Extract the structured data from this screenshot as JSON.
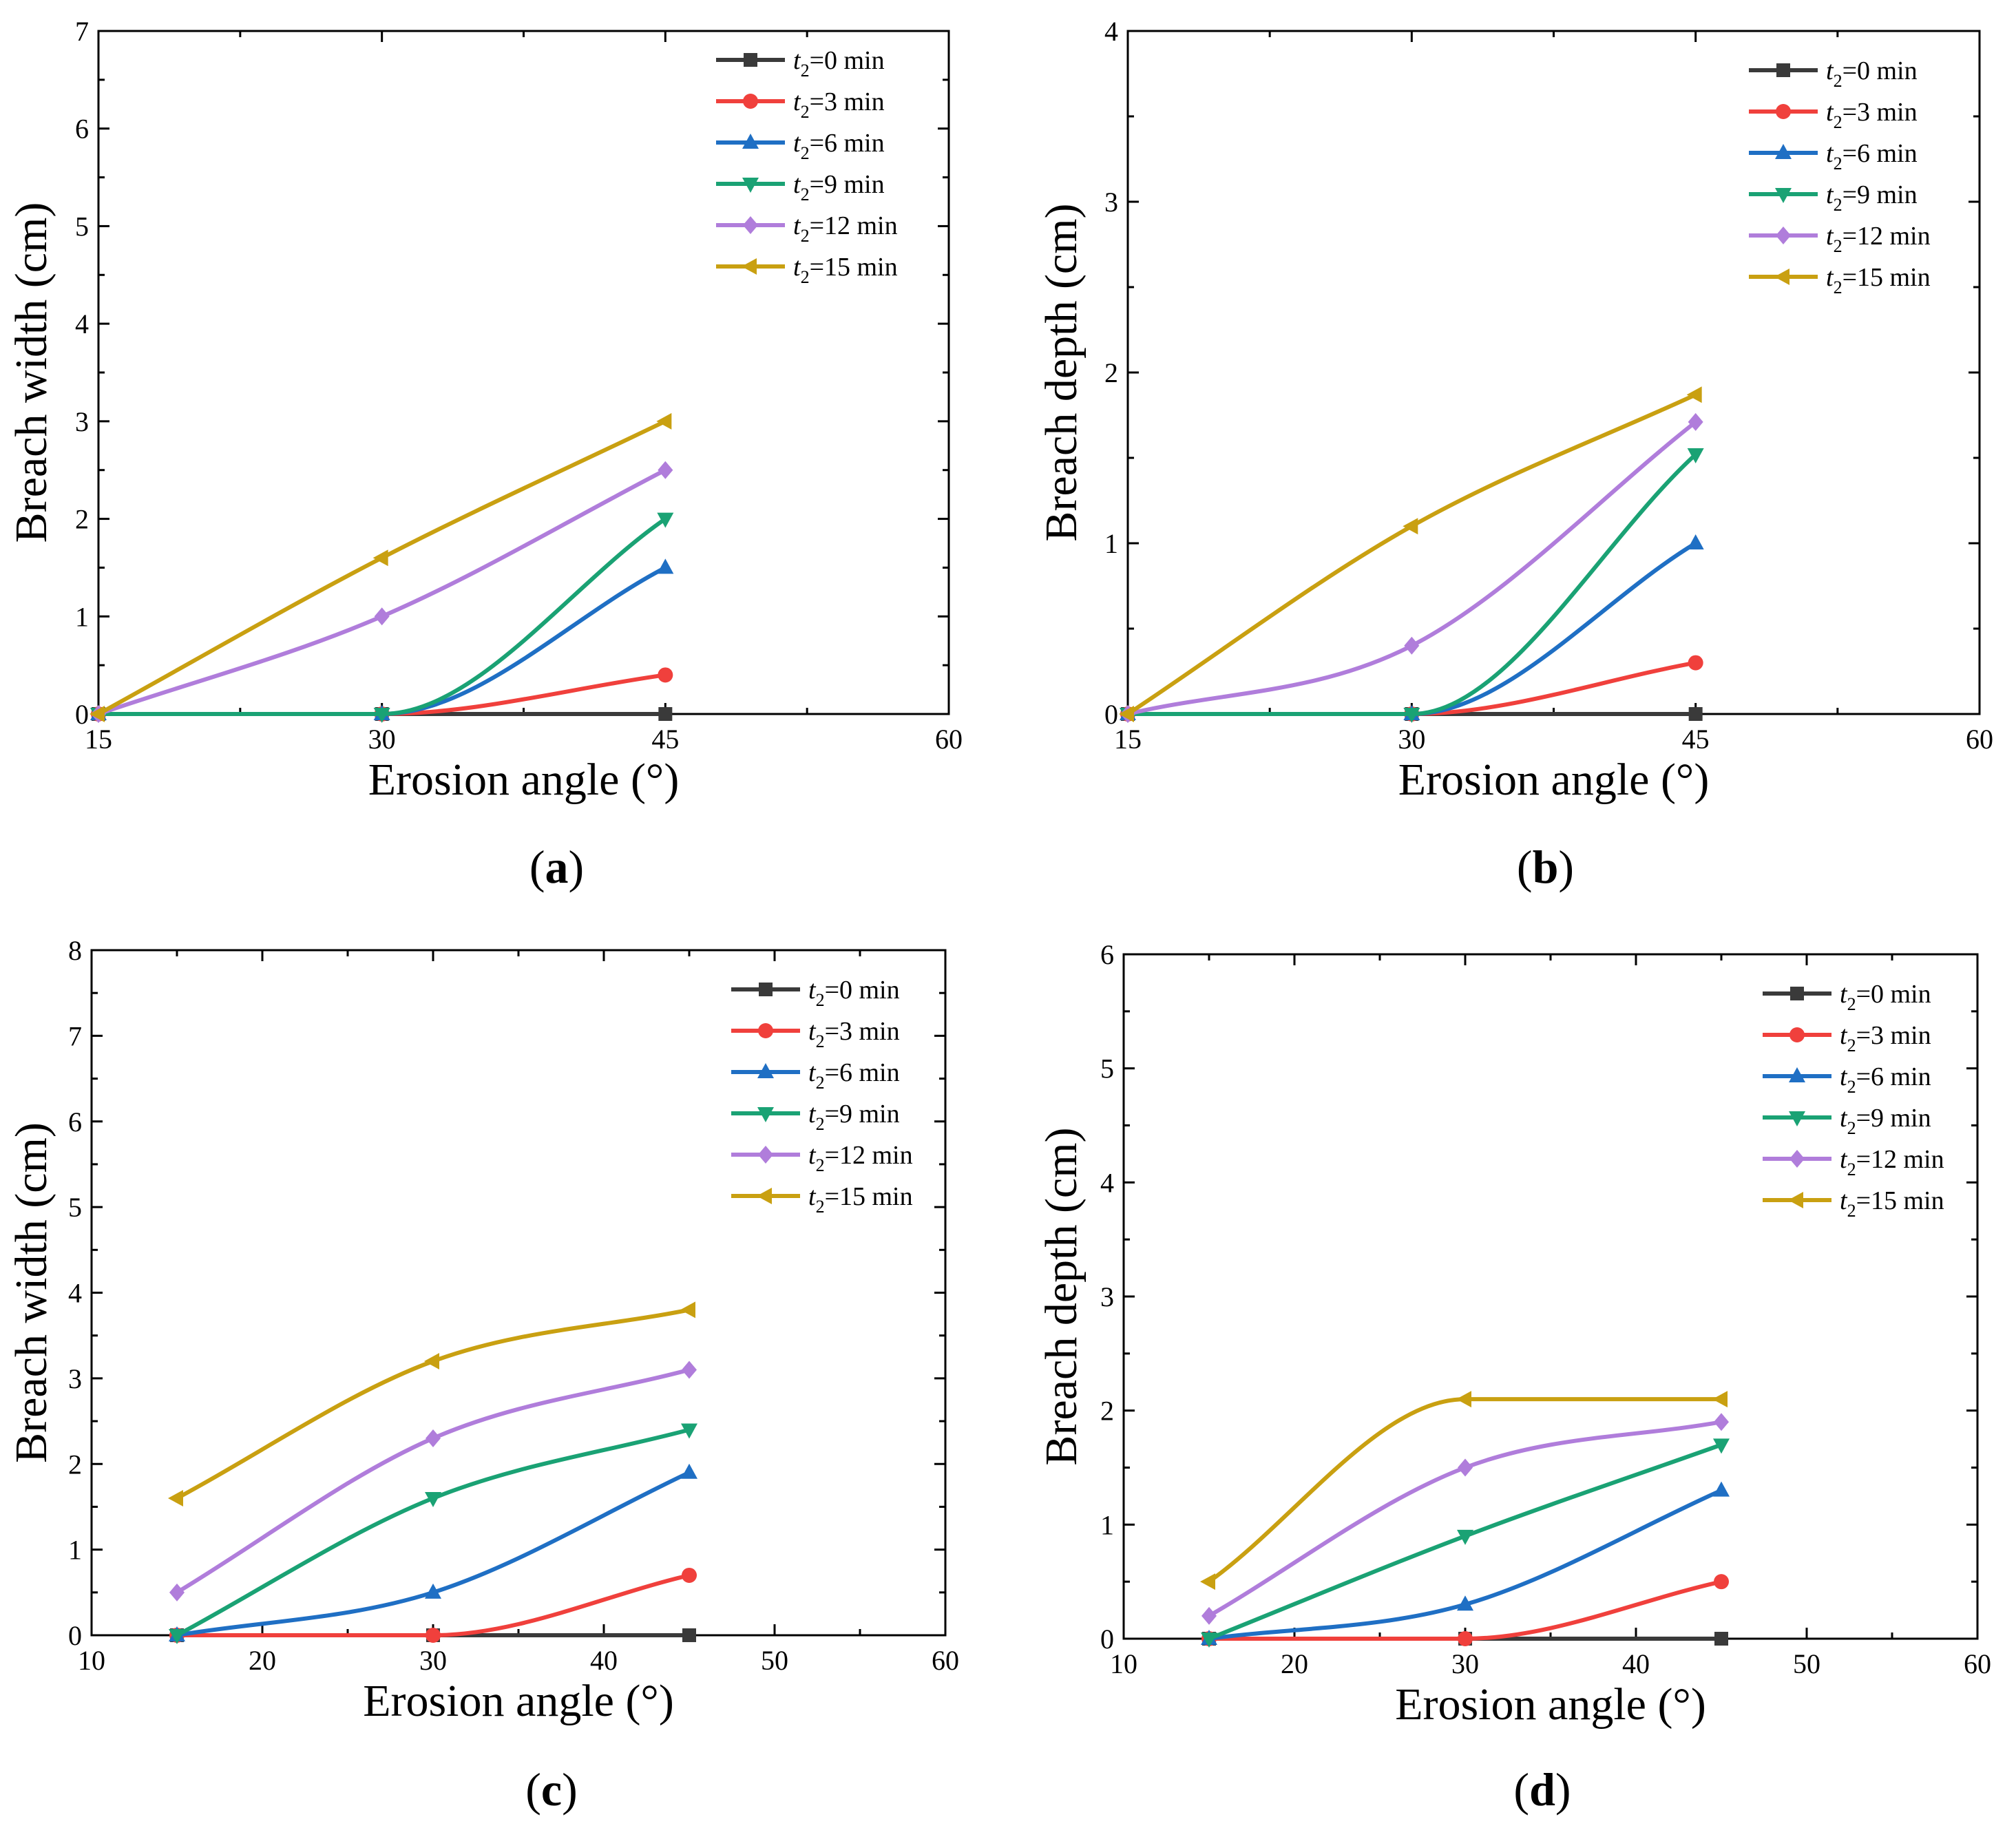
{
  "legend_common": {
    "series_labels": [
      "0 min",
      "3 min",
      "6 min",
      "9 min",
      "12 min",
      "15 min"
    ],
    "variable": "t",
    "variable_subscript": "2"
  },
  "series_styles": [
    {
      "color": "#3a3a3a",
      "marker": "square"
    },
    {
      "color": "#f0403c",
      "marker": "circle"
    },
    {
      "color": "#1f6fc4",
      "marker": "triangle-up"
    },
    {
      "color": "#1aa274",
      "marker": "triangle-down"
    },
    {
      "color": "#b07ddb",
      "marker": "diamond"
    },
    {
      "color": "#c9a011",
      "marker": "triangle-left"
    }
  ],
  "chart_data": [
    {
      "type": "line",
      "panel_label": "a",
      "xlabel": "Erosion angle (°)",
      "ylabel": "Breach width (cm)",
      "xlim": [
        15,
        60
      ],
      "ylim": [
        0,
        7
      ],
      "xticks": [
        15,
        30,
        45,
        60
      ],
      "yticks": [
        0,
        1,
        2,
        3,
        4,
        5,
        6,
        7
      ],
      "x": [
        15,
        30,
        45
      ],
      "series": [
        {
          "name": "t2=0 min",
          "values": [
            0,
            0,
            0
          ]
        },
        {
          "name": "t2=3 min",
          "values": [
            0,
            0,
            0.4
          ]
        },
        {
          "name": "t2=6 min",
          "values": [
            0,
            0,
            1.5
          ]
        },
        {
          "name": "t2=9 min",
          "values": [
            0,
            0,
            2.0
          ]
        },
        {
          "name": "t2=12 min",
          "values": [
            0,
            1.0,
            2.5
          ]
        },
        {
          "name": "t2=15 min",
          "values": [
            0,
            1.6,
            3.0
          ]
        }
      ]
    },
    {
      "type": "line",
      "panel_label": "b",
      "xlabel": "Erosion angle (°)",
      "ylabel": "Breach depth (cm)",
      "xlim": [
        15,
        60
      ],
      "ylim": [
        0,
        4
      ],
      "xticks": [
        15,
        30,
        45,
        60
      ],
      "yticks": [
        0,
        1,
        2,
        3,
        4
      ],
      "x": [
        15,
        30,
        45
      ],
      "series": [
        {
          "name": "t2=0 min",
          "values": [
            0,
            0,
            0
          ]
        },
        {
          "name": "t2=3 min",
          "values": [
            0,
            0,
            0.3
          ]
        },
        {
          "name": "t2=6 min",
          "values": [
            0,
            0,
            1.0
          ]
        },
        {
          "name": "t2=9 min",
          "values": [
            0,
            0,
            1.52
          ]
        },
        {
          "name": "t2=12 min",
          "values": [
            0,
            0.4,
            1.71
          ]
        },
        {
          "name": "t2=15 min",
          "values": [
            0,
            1.1,
            1.87
          ]
        }
      ]
    },
    {
      "type": "line",
      "panel_label": "c",
      "xlabel": "Erosion angle (°)",
      "ylabel": "Breach width (cm)",
      "xlim": [
        10,
        60
      ],
      "ylim": [
        0,
        8
      ],
      "xticks": [
        10,
        20,
        30,
        40,
        50,
        60
      ],
      "yticks": [
        0,
        1,
        2,
        3,
        4,
        5,
        6,
        7,
        8
      ],
      "x": [
        15,
        30,
        45
      ],
      "series": [
        {
          "name": "t2=0 min",
          "values": [
            0,
            0,
            0
          ]
        },
        {
          "name": "t2=3 min",
          "values": [
            0,
            0,
            0.7
          ]
        },
        {
          "name": "t2=6 min",
          "values": [
            0,
            0.5,
            1.9
          ]
        },
        {
          "name": "t2=9 min",
          "values": [
            0,
            1.6,
            2.4
          ]
        },
        {
          "name": "t2=12 min",
          "values": [
            0.5,
            2.3,
            3.1
          ]
        },
        {
          "name": "t2=15 min",
          "values": [
            1.6,
            3.2,
            3.8
          ]
        }
      ]
    },
    {
      "type": "line",
      "panel_label": "d",
      "xlabel": "Erosion angle (°)",
      "ylabel": "Breach depth (cm)",
      "xlim": [
        10,
        60
      ],
      "ylim": [
        0,
        6
      ],
      "xticks": [
        10,
        20,
        30,
        40,
        50,
        60
      ],
      "yticks": [
        0,
        1,
        2,
        3,
        4,
        5,
        6
      ],
      "x": [
        15,
        30,
        45
      ],
      "series": [
        {
          "name": "t2=0 min",
          "values": [
            0,
            0,
            0
          ]
        },
        {
          "name": "t2=3 min",
          "values": [
            0,
            0,
            0.5
          ]
        },
        {
          "name": "t2=6 min",
          "values": [
            0,
            0.3,
            1.3
          ]
        },
        {
          "name": "t2=9 min",
          "values": [
            0,
            0.9,
            1.7
          ]
        },
        {
          "name": "t2=12 min",
          "values": [
            0.2,
            1.5,
            1.9
          ]
        },
        {
          "name": "t2=15 min",
          "values": [
            0.5,
            2.1,
            2.1
          ]
        }
      ]
    }
  ]
}
